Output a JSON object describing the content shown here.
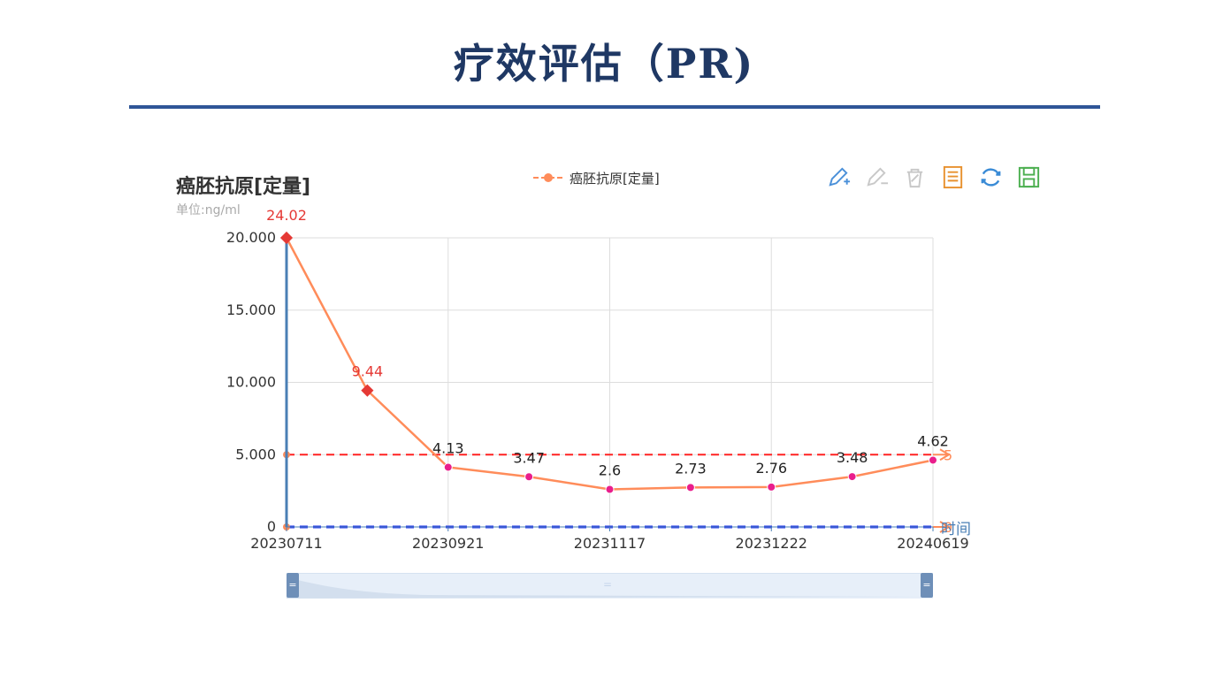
{
  "slide": {
    "title": "疗效评估（PR)"
  },
  "chart_header": {
    "title": "癌胚抗原[定量]",
    "subtitle": "单位:ng/ml"
  },
  "legend": {
    "label": "癌胚抗原[定量]",
    "color": "#ff8c5a"
  },
  "toolbox": {
    "icons": [
      "pencil-add-icon",
      "pencil-remove-icon",
      "trash-icon",
      "document-icon",
      "refresh-icon",
      "save-icon"
    ],
    "colors": [
      "#4a90d9",
      "#c8c8c8",
      "#c8c8c8",
      "#e8912f",
      "#3a8bd6",
      "#4caf50"
    ]
  },
  "chart_data": {
    "type": "line",
    "series": [
      {
        "name": "癌胚抗原[定量]",
        "labels": [
          "24.02",
          "9.44",
          "4.13",
          "3.47",
          "2.6",
          "2.73",
          "2.76",
          "3.48",
          "4.62"
        ],
        "values": [
          24.02,
          9.44,
          4.13,
          3.47,
          2.6,
          2.73,
          2.76,
          3.48,
          4.62
        ],
        "abnormal": [
          true,
          true,
          false,
          false,
          false,
          false,
          false,
          false,
          false
        ]
      }
    ],
    "x_tick_labels": [
      "20230711",
      "",
      "20230921",
      "",
      "20231117",
      "",
      "20231222",
      "",
      "20240619"
    ],
    "y_ticks": [
      "0",
      "5.000",
      "10.000",
      "15.000",
      "20.000"
    ],
    "y_tick_values": [
      0,
      5,
      10,
      15,
      20
    ],
    "ylim": [
      0,
      20
    ],
    "xlabel": "时间",
    "reference_lines": [
      {
        "value": 5,
        "label": "5",
        "color": "#ff2222"
      },
      {
        "value": 0,
        "label": "0",
        "color": "#2233ee"
      }
    ],
    "colors": {
      "line": "#ff8c5a",
      "abnormal_marker": "#e53935",
      "normal_marker": "#e91e8c",
      "axis": "#4a7fb5",
      "grid": "#dddddd"
    },
    "grid": true,
    "legend_position": "top"
  },
  "zoom": {
    "handle_glyph": "="
  }
}
